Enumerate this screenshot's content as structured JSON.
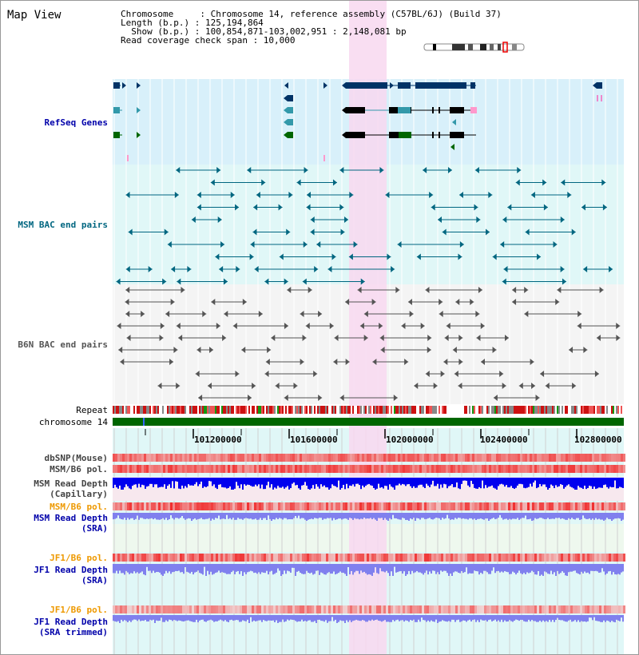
{
  "header": {
    "title": "Map View",
    "info_lines": [
      "Chromosome     : Chromosome 14, reference assembly (C57BL/6J) (Build 37)",
      "Length (b.p.) : 125,194,864",
      "  Show (b.p.) : 100,854,871-103,002,951 : 2,148,081 bp",
      "Read coverage check span : 10,000"
    ]
  },
  "colors": {
    "refseq_bg": "#d8f0fa",
    "msm_bg": "#e0f7f7",
    "highlight": "#f8d8f0",
    "refseq_dark": "#003366",
    "refseq_mid": "#3399aa",
    "refseq_green": "#006600",
    "bac_msm": "#006680",
    "bac_b6n": "#555555",
    "chrom_bar": "#006600",
    "depth_blue": "#0000ee",
    "depth_light": "#8080ee",
    "pol_red": "#ee3333"
  },
  "tracks": {
    "refseq": "RefSeq Genes",
    "msm_bac": "MSM BAC end pairs",
    "b6n_bac": "B6N BAC end pairs",
    "repeat": "Repeat",
    "chromosome": "chromosome 14",
    "dbsnp": "dbSNP(Mouse)",
    "msm_b6_pol": "MSM/B6 pol.",
    "msm_depth_cap": [
      "MSM Read Depth",
      "(Capillary)"
    ],
    "msm_b6_pol2": "MSM/B6 pol.",
    "msm_depth_sra": [
      "MSM Read Depth",
      "(SRA)"
    ],
    "jf1_b6_pol": "JF1/B6 pol.",
    "jf1_depth_sra": [
      "JF1 Read Depth",
      "(SRA)"
    ],
    "jf1_b6_pol2": "JF1/B6 pol.",
    "jf1_depth_trim": [
      "JF1 Read Depth",
      "(SRA trimmed)"
    ]
  },
  "axis": {
    "ticks": [
      "101200000",
      "101600000",
      "102000000",
      "102400000",
      "102800000"
    ]
  }
}
